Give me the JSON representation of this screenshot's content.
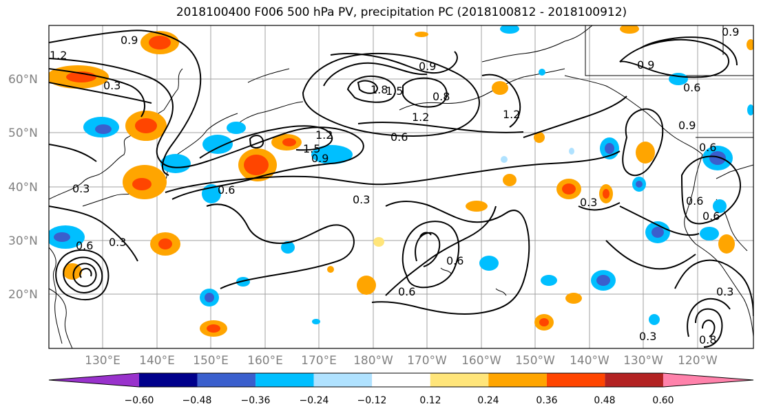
{
  "title": "2018100400 F006 500 hPa PV, precipitation PC (2018100812 - 2018100912)",
  "lat_labels": [
    "60°N",
    "50°N",
    "40°N",
    "30°N",
    "20°N"
  ],
  "lon_labels": [
    "130°E",
    "140°E",
    "150°E",
    "160°E",
    "170°E",
    "180°W",
    "170°W",
    "160°W",
    "150°W",
    "140°W",
    "130°W",
    "120°W"
  ],
  "colorbar": {
    "levels": [
      "−0.60",
      "−0.48",
      "−0.36",
      "−0.24",
      "−0.12",
      "0.12",
      "0.24",
      "0.36",
      "0.48",
      "0.60"
    ],
    "colors": [
      "#9932cc",
      "#00008b",
      "#3a5fcd",
      "#00bfff",
      "#b0e2ff",
      "#ffffff",
      "#ffe57a",
      "#ffa500",
      "#ff4500",
      "#b22222",
      "#ff82ab"
    ]
  },
  "contour_labels": [
    "0.9",
    "1.2",
    "0.3",
    "0.9",
    "1.8",
    "1.5",
    "0.8",
    "1.2",
    "1.2",
    "0.6",
    "0.9",
    "0.6",
    "0.9",
    "0.6",
    "1.2",
    "1.5",
    "0.9",
    "0.6",
    "0.3",
    "0.6",
    "0.3",
    "0.6",
    "0.3",
    "0.6",
    "0.9",
    "0.3",
    "0.3",
    "0.6",
    "0.6",
    "0.3",
    "0.8"
  ]
}
